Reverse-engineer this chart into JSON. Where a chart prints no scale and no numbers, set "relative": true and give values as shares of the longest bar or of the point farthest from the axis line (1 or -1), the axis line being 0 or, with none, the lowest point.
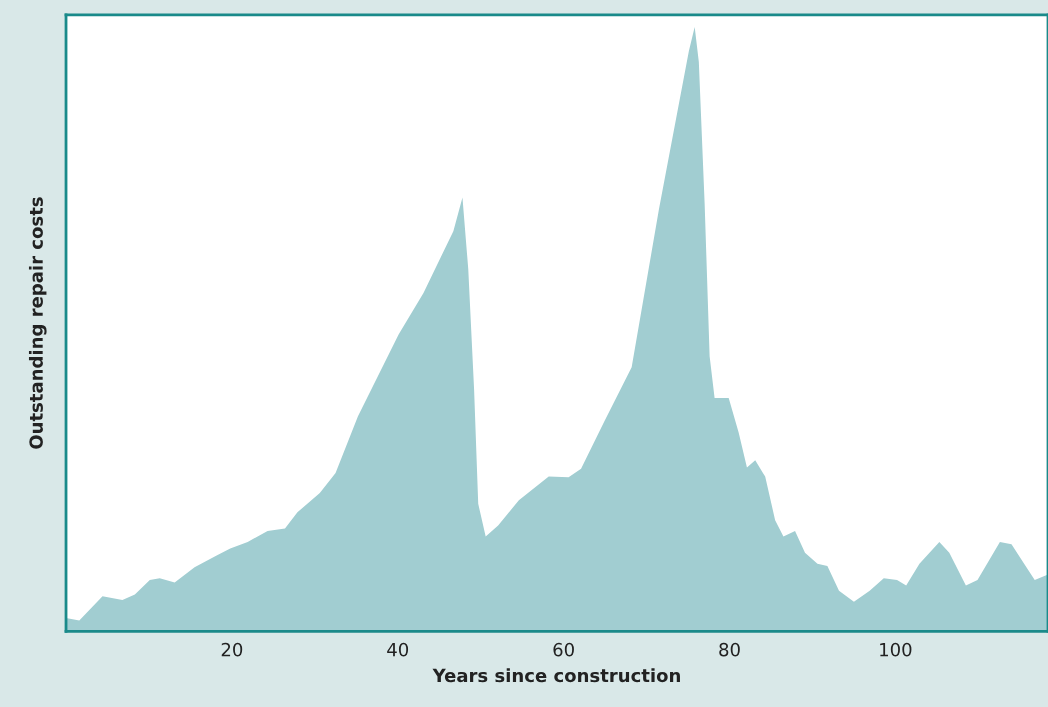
{
  "chart_data": {
    "type": "area",
    "xlabel": "Years since construction",
    "ylabel": "Outstanding repair costs",
    "relative": true,
    "xlim": [
      0,
      118.4
    ],
    "xticks": [
      20,
      40,
      60,
      80,
      100
    ],
    "grid": false,
    "legend": false,
    "series": [
      {
        "color": "#a1cdd1",
        "x": [
          0,
          1.6,
          4.4,
          6.8,
          8.3,
          10.1,
          11.3,
          13.1,
          15.5,
          18.1,
          19.8,
          21.9,
          24.3,
          26.4,
          27.9,
          30.6,
          32.5,
          35.2,
          40.1,
          43.1,
          46.7,
          47.8,
          48.5,
          49.2,
          49.7,
          50.6,
          52.1,
          54.6,
          58.2,
          60.6,
          62.1,
          64.9,
          68.2,
          71.5,
          75.1,
          75.8,
          76.3,
          77.0,
          77.6,
          78.2,
          79.9,
          81.1,
          82.1,
          83.1,
          84.3,
          85.5,
          86.5,
          87.9,
          89.1,
          90.6,
          91.8,
          93.2,
          95.0,
          96.9,
          98.6,
          100.2,
          101.3,
          102.9,
          105.3,
          106.5,
          108.5,
          109.9,
          112.6,
          114.0,
          116.8,
          118.4
        ],
        "values": [
          0.022,
          0.018,
          0.058,
          0.052,
          0.061,
          0.085,
          0.088,
          0.081,
          0.106,
          0.125,
          0.137,
          0.148,
          0.166,
          0.17,
          0.197,
          0.229,
          0.262,
          0.356,
          0.491,
          0.56,
          0.662,
          0.718,
          0.599,
          0.401,
          0.211,
          0.157,
          0.175,
          0.217,
          0.256,
          0.255,
          0.269,
          0.347,
          0.437,
          0.699,
          0.96,
          1.0,
          0.942,
          0.708,
          0.455,
          0.386,
          0.386,
          0.329,
          0.271,
          0.283,
          0.256,
          0.184,
          0.157,
          0.166,
          0.13,
          0.112,
          0.108,
          0.067,
          0.049,
          0.067,
          0.088,
          0.085,
          0.076,
          0.112,
          0.148,
          0.13,
          0.076,
          0.085,
          0.148,
          0.144,
          0.085,
          0.094
        ]
      }
    ]
  }
}
